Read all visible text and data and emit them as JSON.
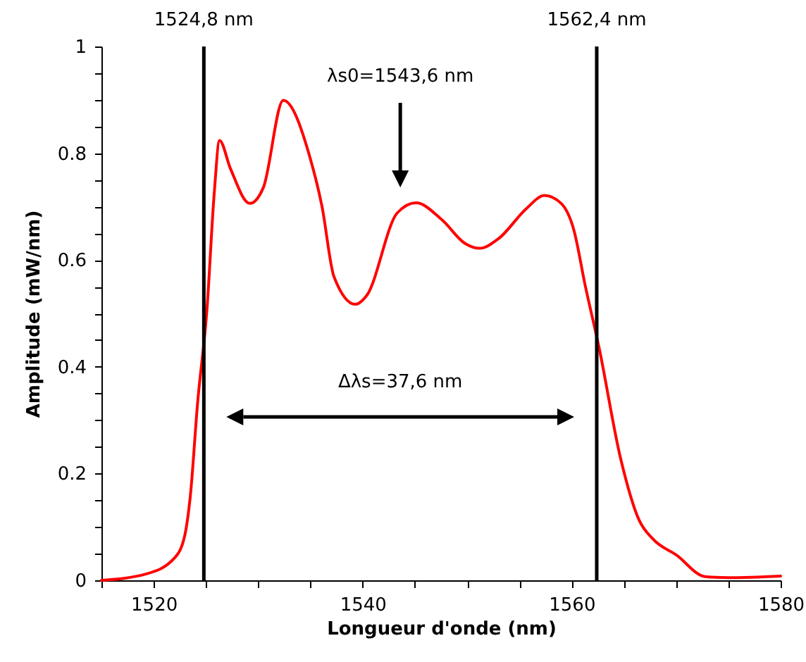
{
  "chart_data": {
    "type": "line",
    "xlabel": "Longueur d'onde (nm)",
    "ylabel": "Amplitude (mW/nm)",
    "xlim": [
      1515,
      1580
    ],
    "xticks": [
      {
        "value": 1515,
        "label": null
      },
      1520,
      {
        "value": 1525,
        "label": null
      },
      {
        "value": 1530,
        "label": null
      },
      {
        "value": 1535,
        "label": null
      },
      1540,
      {
        "value": 1545,
        "label": null
      },
      {
        "value": 1550,
        "label": null
      },
      {
        "value": 1555,
        "label": null
      },
      1560,
      {
        "value": 1565,
        "label": null
      },
      {
        "value": 1570,
        "label": null
      },
      {
        "value": 1575,
        "label": null
      },
      1580
    ],
    "ylim": [
      0,
      1
    ],
    "yticks": [
      0,
      {
        "value": 0.05,
        "label": null
      },
      {
        "value": 0.1,
        "label": null
      },
      {
        "value": 0.15,
        "label": null
      },
      0.2,
      {
        "value": 0.25,
        "label": null
      },
      {
        "value": 0.3,
        "label": null
      },
      {
        "value": 0.35,
        "label": null
      },
      0.4,
      {
        "value": 0.45,
        "label": null
      },
      {
        "value": 0.5,
        "label": null
      },
      {
        "value": 0.55,
        "label": null
      },
      0.6,
      {
        "value": 0.65,
        "label": null
      },
      {
        "value": 0.7,
        "label": null
      },
      {
        "value": 0.75,
        "label": null
      },
      0.8,
      {
        "value": 0.85,
        "label": null
      },
      {
        "value": 0.9,
        "label": null
      },
      {
        "value": 0.95,
        "label": null
      },
      1
    ],
    "series": [
      {
        "color": "#ff0000",
        "x": [
          1515,
          1519.3,
          1522.0,
          1522.95,
          1523.5,
          1524.2,
          1525.1,
          1525.8,
          1526.3,
          1527.35,
          1529.2,
          1530.5,
          1532.4,
          1535.0,
          1536.1,
          1537.25,
          1539.3,
          1540.4,
          1543.3,
          1545.1,
          1547.6,
          1549.8,
          1551.2,
          1553.0,
          1555.7,
          1557.4,
          1559.0,
          1560.2,
          1561.3,
          1562.6,
          1564.7,
          1566.45,
          1567.8,
          1570.05,
          1572.75,
          1575.0,
          1580
        ],
        "values": [
          0,
          0.012,
          0.042,
          0.082,
          0.157,
          0.332,
          0.508,
          0.727,
          0.824,
          0.771,
          0.706,
          0.736,
          0.899,
          0.789,
          0.701,
          0.569,
          0.517,
          0.534,
          0.688,
          0.707,
          0.675,
          0.631,
          0.622,
          0.64,
          0.697,
          0.721,
          0.706,
          0.657,
          0.552,
          0.438,
          0.227,
          0.113,
          0.077,
          0.047,
          0.007,
          0.005,
          0.008
        ]
      }
    ],
    "ref_lines": [
      {
        "axis": "x",
        "value": 1524.8,
        "label": "1524,8 nm",
        "color": "#000000"
      },
      {
        "axis": "x",
        "value": 1562.4,
        "label": "1562,4 nm",
        "color": "#000000"
      }
    ],
    "annotations": [
      "λs0=1543,6 nm",
      "Δλs=37,6 nm"
    ],
    "marker": "none",
    "line_style": "solid",
    "grid": false
  }
}
